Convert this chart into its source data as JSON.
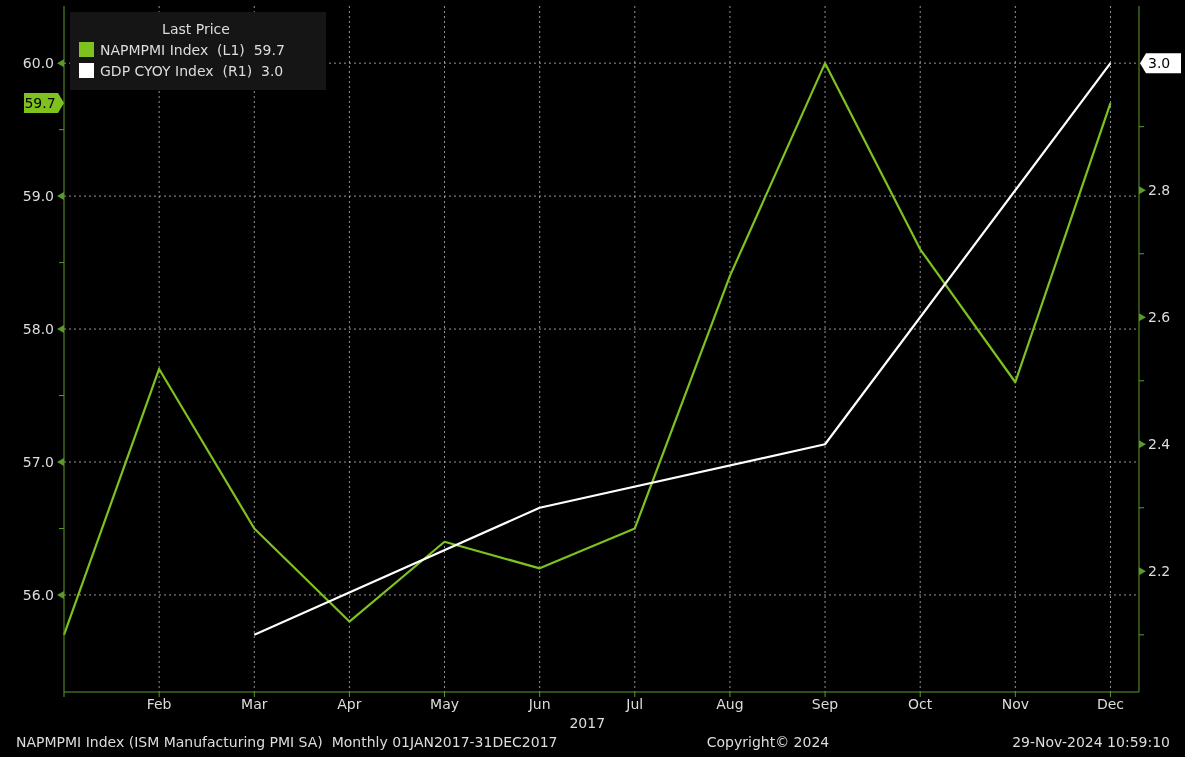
{
  "chart_data": {
    "type": "line",
    "categories": [
      null,
      "Feb",
      "Mar",
      "Apr",
      "May",
      "Jun",
      "Jul",
      "Aug",
      "Sep",
      "Oct",
      "Nov",
      "Dec"
    ],
    "xlabel": "2017",
    "legend_title": "Last Price",
    "legend": "top left",
    "grid": true,
    "ylim": [
      55.27,
      60.43
    ],
    "yticks": [
      {
        "value": 56,
        "label": "56.0"
      },
      {
        "value": 56.5,
        "label": null
      },
      {
        "value": 57,
        "label": "57.0"
      },
      {
        "value": 57.5,
        "label": null
      },
      {
        "value": 58,
        "label": "58.0"
      },
      {
        "value": 58.5,
        "label": null
      },
      {
        "value": 59,
        "label": "59.0"
      },
      {
        "value": 59.5,
        "label": null
      },
      {
        "value": 60,
        "label": "60.0"
      }
    ],
    "y2lim": [
      2.01,
      3.09
    ],
    "y2ticks": [
      {
        "value": 2.1,
        "label": null
      },
      2.2,
      {
        "value": 2.3,
        "label": null
      },
      2.4,
      {
        "value": 2.5,
        "label": null
      },
      2.6,
      {
        "value": 2.7,
        "label": null
      },
      2.8,
      {
        "value": 2.9,
        "label": null
      },
      {
        "value": 3,
        "label": "3.0"
      }
    ],
    "series": [
      {
        "name": "NAPMPMI Index  (L1)  59.7",
        "color": "#7dc21e",
        "values": [
          55.7,
          57.7,
          56.5,
          55.8,
          56.4,
          56.2,
          56.5,
          58.4,
          60.0,
          58.6,
          57.6,
          59.7
        ]
      },
      {
        "name": "GDP CYOY Index  (R1)  3.0",
        "color": "#ffffff",
        "axis": "y2",
        "values": [
          null,
          null,
          2.1,
          null,
          null,
          2.3,
          null,
          null,
          2.4,
          null,
          null,
          3.0
        ]
      }
    ],
    "annotations": [
      "59.7",
      "NAPMPMI Index (ISM Manufacturing PMI SA)  Monthly 01JAN2017-31DEC2017",
      "Copyright© 2024",
      "29-Nov-2024 10:59:10"
    ]
  }
}
